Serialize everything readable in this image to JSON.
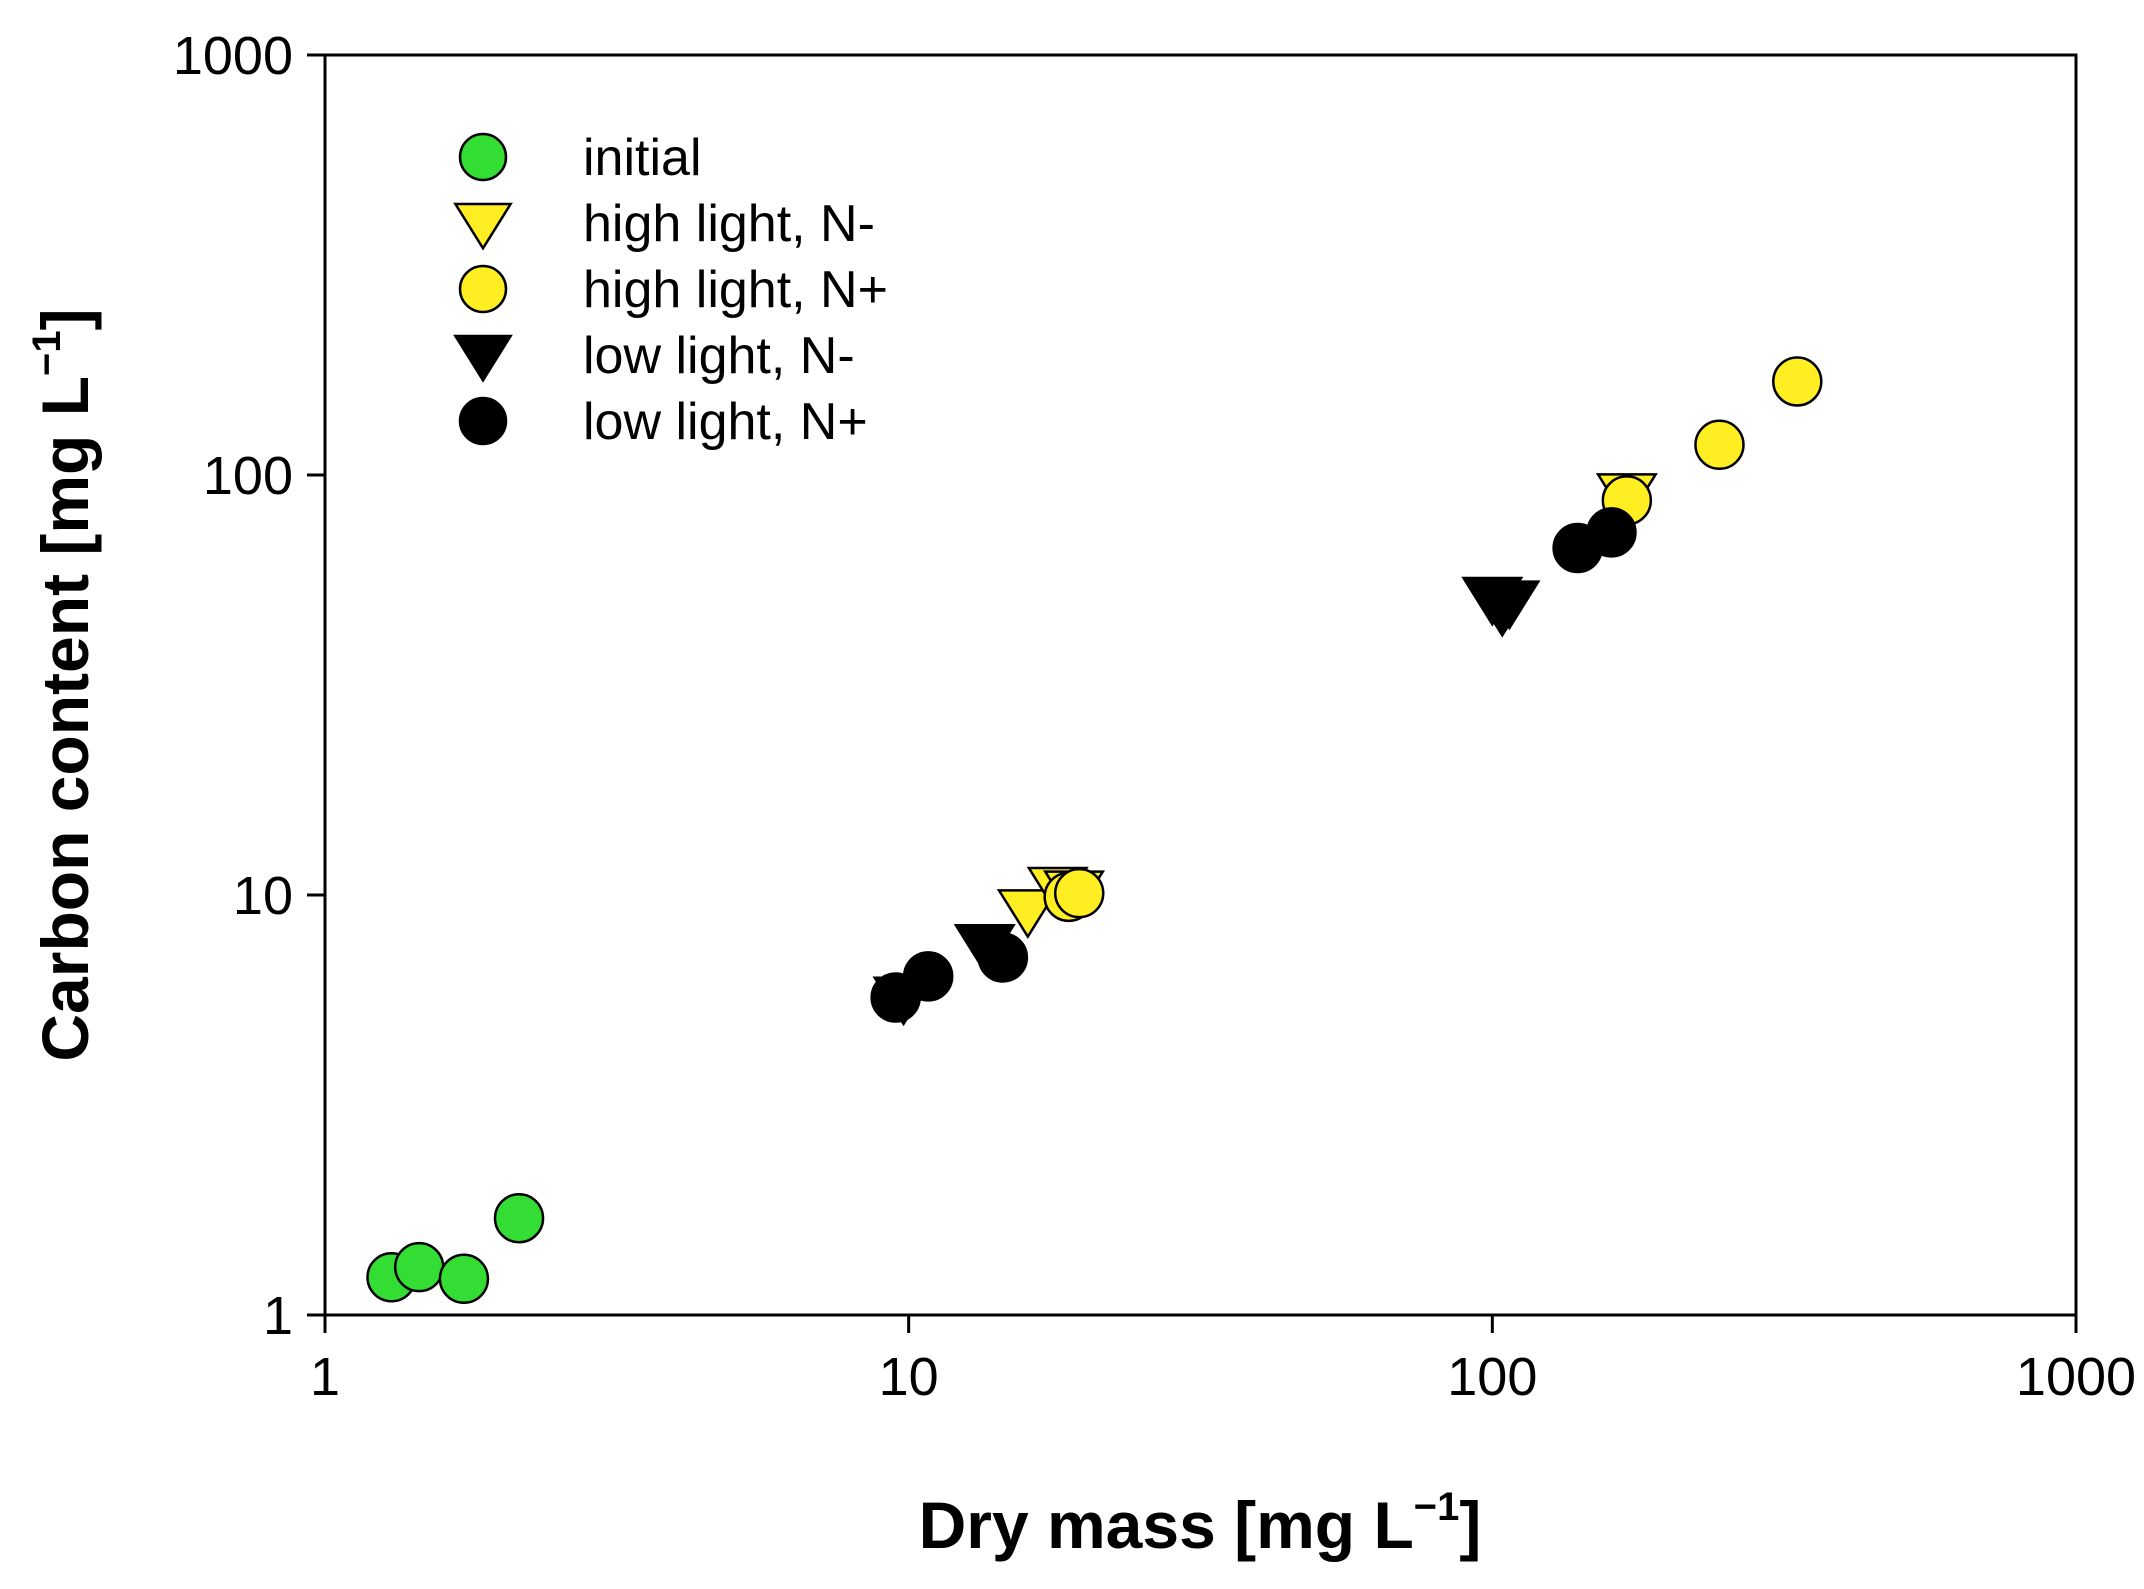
{
  "chart_data": {
    "type": "scatter",
    "xscale": "log",
    "yscale": "log",
    "xlim": [
      1,
      1000
    ],
    "ylim": [
      1,
      1000
    ],
    "grid": false,
    "legend_position": "top-left",
    "x_ticks": [
      1,
      10,
      100,
      1000
    ],
    "y_ticks": [
      1,
      10,
      100,
      1000
    ],
    "x_tick_labels": [
      "1",
      "10",
      "100",
      "1000"
    ],
    "y_tick_labels": [
      "1",
      "10",
      "100",
      "1000"
    ],
    "xlabel": {
      "main": "Dry mass [mg L",
      "sup": "−1",
      "close": "]"
    },
    "ylabel": {
      "main": "Carbon content [mg L",
      "sup": "−1",
      "close": "]"
    },
    "series": [
      {
        "name": "initial",
        "marker": "circle",
        "color": "#33dd33",
        "points": [
          [
            1.3,
            1.23
          ],
          [
            1.45,
            1.3
          ],
          [
            1.73,
            1.22
          ],
          [
            2.15,
            1.7
          ]
        ]
      },
      {
        "name": "high light, N-",
        "marker": "triangle-down",
        "color": "#ffee22",
        "points": [
          [
            16.0,
            9.2
          ],
          [
            18.0,
            10.4
          ],
          [
            19.2,
            10.2
          ],
          [
            170,
            90
          ]
        ]
      },
      {
        "name": "high light, N+",
        "marker": "circle",
        "color": "#ffee22",
        "points": [
          [
            18.8,
            9.9
          ],
          [
            19.6,
            10.1
          ],
          [
            170,
            87
          ],
          [
            245,
            118
          ],
          [
            333,
            167
          ]
        ]
      },
      {
        "name": "low light, N-",
        "marker": "triangle-down",
        "color": "#000000",
        "points": [
          [
            9.8,
            5.7
          ],
          [
            13.5,
            7.6
          ],
          [
            100,
            51
          ],
          [
            104,
            48
          ],
          [
            107,
            50
          ]
        ]
      },
      {
        "name": "low light, N+",
        "marker": "circle",
        "color": "#000000",
        "points": [
          [
            9.5,
            5.7
          ],
          [
            10.8,
            6.4
          ],
          [
            14.5,
            7.1
          ],
          [
            140,
            67
          ],
          [
            160,
            73
          ]
        ]
      }
    ]
  }
}
